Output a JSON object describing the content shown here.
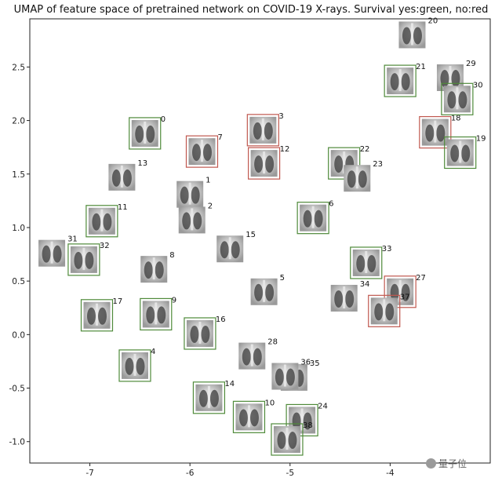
{
  "chart_data": {
    "type": "scatter",
    "title": "UMAP of feature space of pretrained network on COVID-19 X-rays. Survival yes:green, no:red",
    "xlabel": "",
    "ylabel": "",
    "xlim": [
      -7.6,
      -3.0
    ],
    "ylim": [
      -1.2,
      2.95
    ],
    "xticks": [
      "-7",
      "-6",
      "-5",
      "-4"
    ],
    "xtick_values": [
      -7,
      -6,
      -5,
      -4
    ],
    "yticks": [
      "-1.0",
      "-0.5",
      "0.0",
      "0.5",
      "1.0",
      "1.5",
      "2.0",
      "2.5"
    ],
    "ytick_values": [
      -1.0,
      -0.5,
      0.0,
      0.5,
      1.0,
      1.5,
      2.0,
      2.5
    ],
    "grid": false,
    "colors": {
      "survived": "#4f8a3a",
      "died": "#c0584f",
      "none": ""
    },
    "points": [
      {
        "id": "0",
        "x": -6.45,
        "y": 1.88,
        "outcome": "survived"
      },
      {
        "id": "1",
        "x": -6.0,
        "y": 1.31,
        "outcome": "none"
      },
      {
        "id": "2",
        "x": -5.98,
        "y": 1.07,
        "outcome": "none"
      },
      {
        "id": "3",
        "x": -5.27,
        "y": 1.91,
        "outcome": "died"
      },
      {
        "id": "4",
        "x": -6.55,
        "y": -0.29,
        "outcome": "survived"
      },
      {
        "id": "5",
        "x": -5.26,
        "y": 0.4,
        "outcome": "none"
      },
      {
        "id": "6",
        "x": -4.77,
        "y": 1.09,
        "outcome": "survived"
      },
      {
        "id": "7",
        "x": -5.88,
        "y": 1.71,
        "outcome": "died"
      },
      {
        "id": "8",
        "x": -6.36,
        "y": 0.61,
        "outcome": "none"
      },
      {
        "id": "9",
        "x": -6.34,
        "y": 0.19,
        "outcome": "survived"
      },
      {
        "id": "10",
        "x": -5.41,
        "y": -0.77,
        "outcome": "survived"
      },
      {
        "id": "11",
        "x": -6.88,
        "y": 1.06,
        "outcome": "survived"
      },
      {
        "id": "12",
        "x": -5.26,
        "y": 1.6,
        "outcome": "died"
      },
      {
        "id": "13",
        "x": -6.68,
        "y": 1.47,
        "outcome": "none"
      },
      {
        "id": "14",
        "x": -5.81,
        "y": -0.59,
        "outcome": "survived"
      },
      {
        "id": "15",
        "x": -5.6,
        "y": 0.8,
        "outcome": "none"
      },
      {
        "id": "16",
        "x": -5.9,
        "y": 0.01,
        "outcome": "survived"
      },
      {
        "id": "17",
        "x": -6.93,
        "y": 0.18,
        "outcome": "survived"
      },
      {
        "id": "18",
        "x": -3.55,
        "y": 1.89,
        "outcome": "died"
      },
      {
        "id": "19",
        "x": -3.3,
        "y": 1.7,
        "outcome": "survived"
      },
      {
        "id": "20",
        "x": -3.78,
        "y": 2.8,
        "outcome": "none"
      },
      {
        "id": "21",
        "x": -3.9,
        "y": 2.37,
        "outcome": "survived"
      },
      {
        "id": "22",
        "x": -4.46,
        "y": 1.6,
        "outcome": "survived"
      },
      {
        "id": "23",
        "x": -4.33,
        "y": 1.46,
        "outcome": "none"
      },
      {
        "id": "24",
        "x": -4.88,
        "y": -0.8,
        "outcome": "survived"
      },
      {
        "id": "27",
        "x": -3.9,
        "y": 0.4,
        "outcome": "died"
      },
      {
        "id": "28",
        "x": -5.38,
        "y": -0.2,
        "outcome": "none"
      },
      {
        "id": "29",
        "x": -3.4,
        "y": 2.4,
        "outcome": "none"
      },
      {
        "id": "30",
        "x": -3.33,
        "y": 2.2,
        "outcome": "survived"
      },
      {
        "id": "31",
        "x": -7.38,
        "y": 0.76,
        "outcome": "none"
      },
      {
        "id": "32",
        "x": -7.06,
        "y": 0.7,
        "outcome": "survived"
      },
      {
        "id": "33",
        "x": -4.24,
        "y": 0.67,
        "outcome": "survived"
      },
      {
        "id": "34",
        "x": -4.46,
        "y": 0.34,
        "outcome": "none"
      },
      {
        "id": "35",
        "x": -4.96,
        "y": -0.4,
        "outcome": "none"
      },
      {
        "id": "36",
        "x": -5.05,
        "y": -0.39,
        "outcome": "none"
      },
      {
        "id": "37",
        "x": -4.06,
        "y": 0.22,
        "outcome": "died"
      },
      {
        "id": "38",
        "x": -5.03,
        "y": -0.98,
        "outcome": "survived"
      }
    ]
  },
  "watermark": {
    "text": "量子位"
  }
}
